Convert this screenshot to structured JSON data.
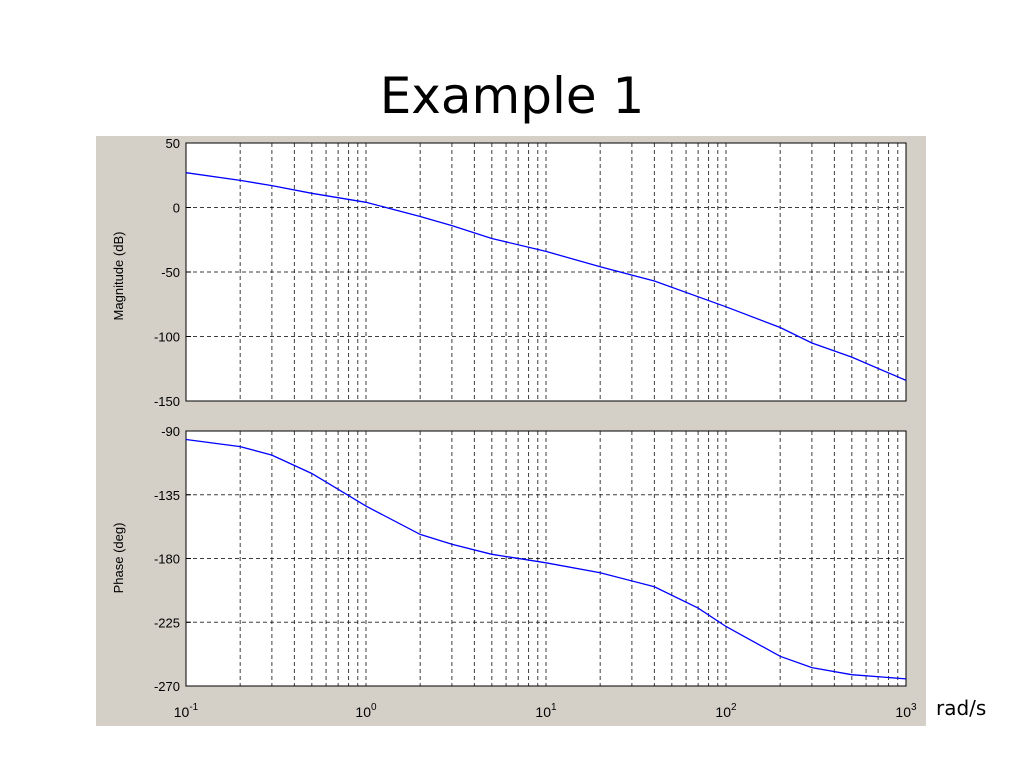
{
  "slide": {
    "title": "Example 1",
    "unit_label": "rad/s"
  },
  "chart_data": [
    {
      "type": "line",
      "panel": "magnitude",
      "ylabel": "Magnitude (dB)",
      "xscale": "log",
      "xlim": [
        0.1,
        1000
      ],
      "ylim": [
        -150,
        50
      ],
      "yticks": [
        50,
        0,
        -50,
        -100,
        -150
      ],
      "grid": true,
      "line_color": "#0000ff",
      "series": [
        {
          "x": [
            0.1,
            0.2,
            0.3,
            0.5,
            1,
            2,
            3,
            5,
            10,
            20,
            40,
            100,
            200,
            300,
            500,
            1000
          ],
          "values": [
            27,
            21,
            17,
            11,
            4,
            -7,
            -14,
            -24,
            -34,
            -46,
            -57,
            -77,
            -93,
            -105,
            -116,
            -134
          ]
        }
      ]
    },
    {
      "type": "line",
      "panel": "phase",
      "ylabel": "Phase (deg)",
      "xscale": "log",
      "xlim": [
        0.1,
        1000
      ],
      "ylim": [
        -270,
        -90
      ],
      "yticks": [
        -90,
        -135,
        -180,
        -225,
        -270
      ],
      "xticks": [
        {
          "value": 0.1,
          "base": "10",
          "exp": "-1"
        },
        {
          "value": 1,
          "base": "10",
          "exp": "0"
        },
        {
          "value": 10,
          "base": "10",
          "exp": "1"
        },
        {
          "value": 100,
          "base": "10",
          "exp": "2"
        },
        {
          "value": 1000,
          "base": "10",
          "exp": "3"
        }
      ],
      "grid": true,
      "line_color": "#0000ff",
      "series": [
        {
          "x": [
            0.1,
            0.2,
            0.3,
            0.5,
            1,
            2,
            3,
            5,
            10,
            20,
            40,
            70,
            100,
            200,
            300,
            500,
            1000
          ],
          "values": [
            -96,
            -101,
            -107,
            -120,
            -143,
            -163,
            -170,
            -177,
            -183,
            -190,
            -200,
            -215,
            -228,
            -249,
            -257,
            -262,
            -265
          ]
        }
      ]
    }
  ]
}
